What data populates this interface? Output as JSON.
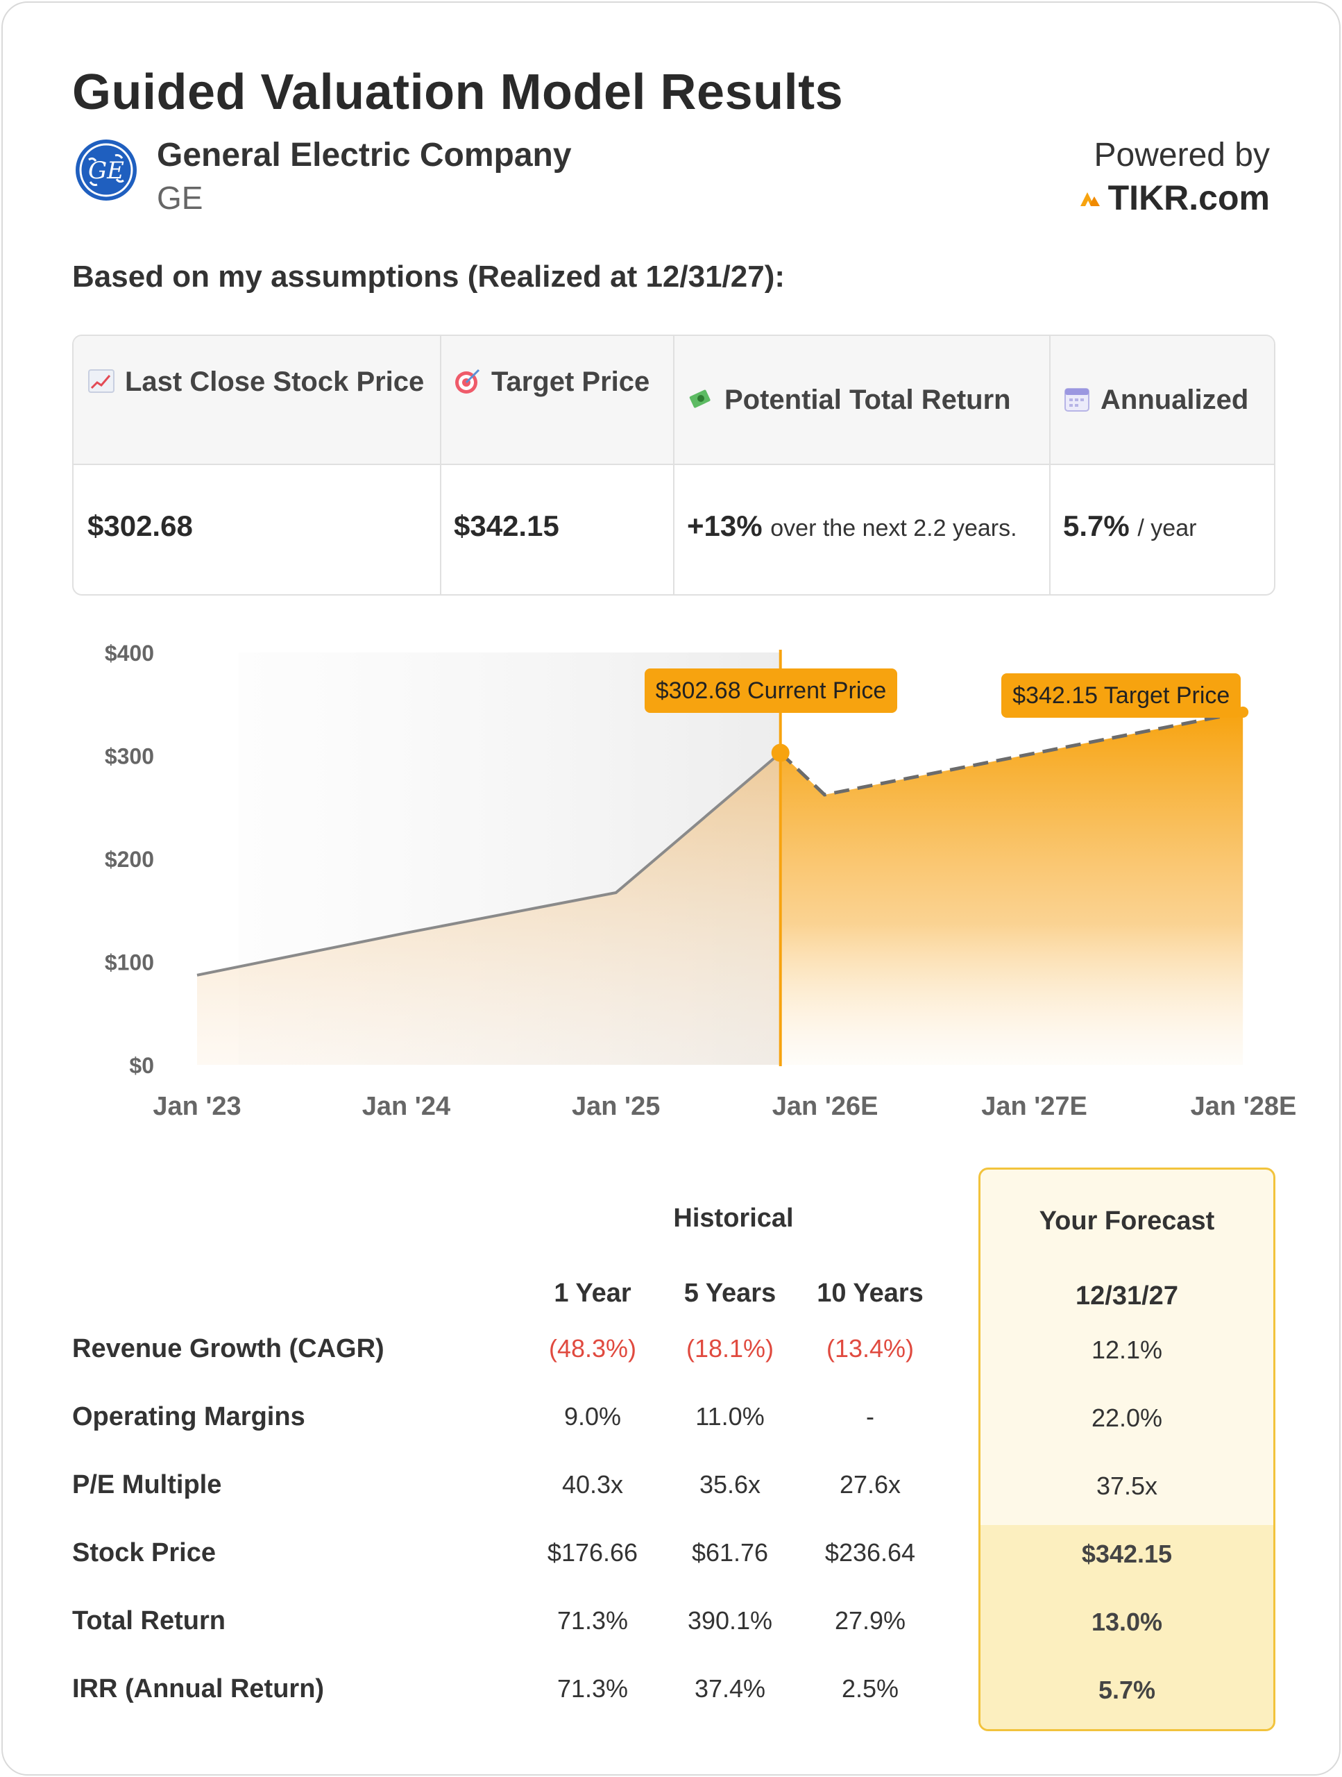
{
  "header": {
    "title": "Guided Valuation Model Results",
    "company_name": "General Electric Company",
    "ticker": "GE",
    "powered_by": "Powered by",
    "brand": "TIKR.com",
    "assumptions": "Based on my assumptions (Realized at 12/31/27):"
  },
  "summary": {
    "columns": [
      {
        "icon": "chart-increasing-icon",
        "label": "Last Close Stock Price",
        "value": "$302.68",
        "suffix": ""
      },
      {
        "icon": "target-icon",
        "label": "Target Price",
        "value": "$342.15",
        "suffix": ""
      },
      {
        "icon": "money-wings-icon",
        "label": "Potential Total Return",
        "value": "+13%",
        "suffix": "over the next 2.2 years."
      },
      {
        "icon": "calendar-icon",
        "label": "Annualized",
        "value": "5.7%",
        "suffix": "/ year"
      }
    ]
  },
  "chart_data": {
    "type": "area",
    "x": [
      "2023-01-01",
      "2024-01-01",
      "2025-01-01",
      "2025-10-15",
      "2025-12-31",
      "2026-01-01",
      "2027-01-01",
      "2027-12-31"
    ],
    "series": [
      {
        "name": "Historical",
        "x": [
          "2023-01-01",
          "2024-01-01",
          "2025-01-01",
          "2025-10-15"
        ],
        "values": [
          87,
          128,
          167,
          302.68
        ]
      },
      {
        "name": "Forecast",
        "x": [
          "2025-10-15",
          "2025-12-31",
          "2027-12-31"
        ],
        "values": [
          302.68,
          262,
          342.15
        ],
        "style": "dashed"
      }
    ],
    "x_ticks": [
      "Jan '23",
      "Jan '24",
      "Jan '25",
      "Jan '26E",
      "Jan '27E",
      "Jan '28E"
    ],
    "y_ticks": [
      "$0",
      "$100",
      "$200",
      "$300",
      "$400"
    ],
    "ylim": [
      0,
      400
    ],
    "annotations": [
      {
        "text": "$302.68 Current Price",
        "x": "2025-10-15",
        "y": 302.68
      },
      {
        "text": "$342.15 Target Price",
        "x": "2027-12-31",
        "y": 342.15
      }
    ],
    "colors": {
      "historical_line": "#8a8a8a",
      "forecast": "#f7a30f",
      "marker": "#f7a30f"
    },
    "grid": false
  },
  "metrics": {
    "historical_title": "Historical",
    "forecast_title": "Your Forecast",
    "historical_columns": [
      "1 Year",
      "5 Years",
      "10 Years"
    ],
    "forecast_column": "12/31/27",
    "rows": [
      {
        "label": "Revenue Growth (CAGR)",
        "hist": [
          "(48.3%)",
          "(18.1%)",
          "(13.4%)"
        ],
        "negative": true,
        "forecast": "12.1%",
        "highlight": false
      },
      {
        "label": "Operating Margins",
        "hist": [
          "9.0%",
          "11.0%",
          "-"
        ],
        "negative": false,
        "forecast": "22.0%",
        "highlight": false
      },
      {
        "label": "P/E Multiple",
        "hist": [
          "40.3x",
          "35.6x",
          "27.6x"
        ],
        "negative": false,
        "forecast": "37.5x",
        "highlight": false
      },
      {
        "label": "Stock Price",
        "hist": [
          "$176.66",
          "$61.76",
          "$236.64"
        ],
        "negative": false,
        "forecast": "$342.15",
        "highlight": true
      },
      {
        "label": "Total Return",
        "hist": [
          "71.3%",
          "390.1%",
          "27.9%"
        ],
        "negative": false,
        "forecast": "13.0%",
        "highlight": true
      },
      {
        "label": "IRR (Annual Return)",
        "hist": [
          "71.3%",
          "37.4%",
          "2.5%"
        ],
        "negative": false,
        "forecast": "5.7%",
        "highlight": true
      }
    ]
  }
}
